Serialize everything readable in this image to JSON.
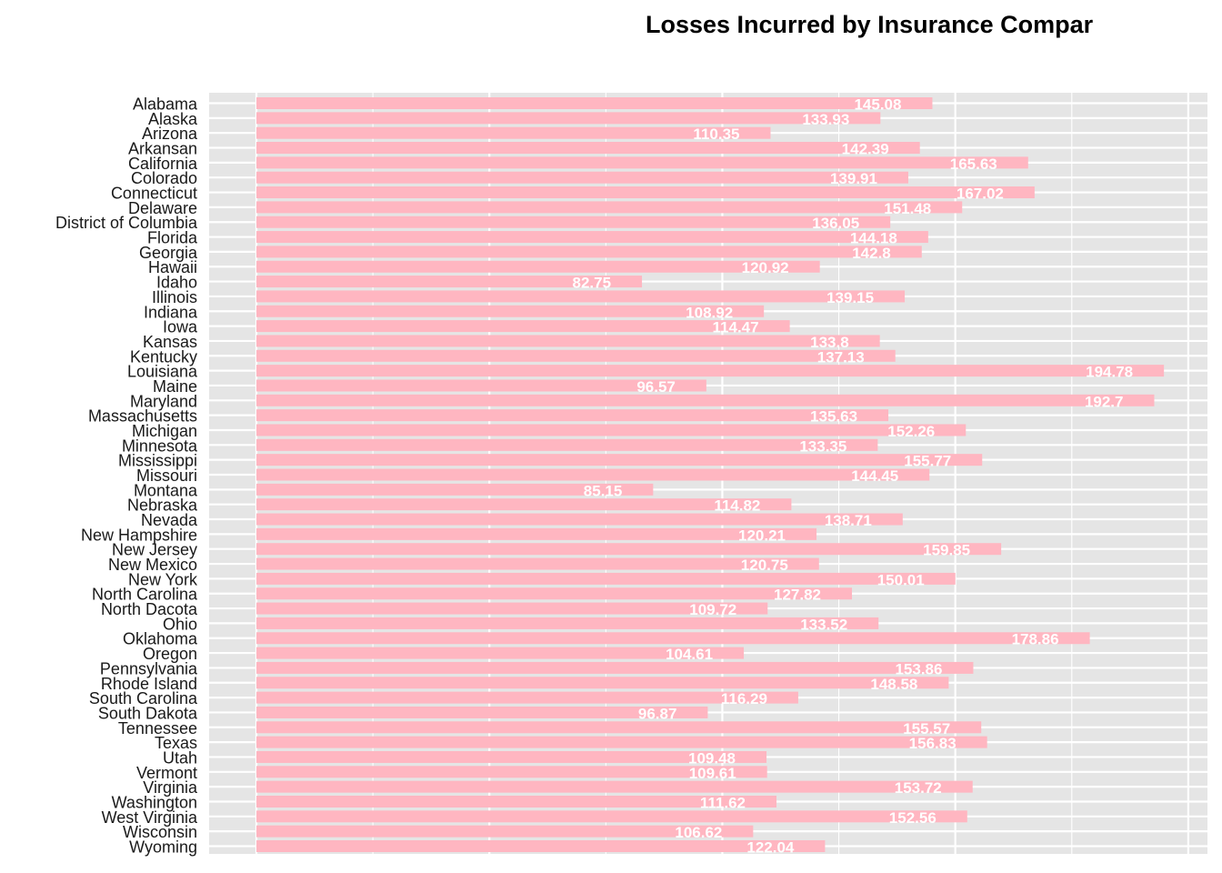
{
  "chart_data": {
    "type": "bar",
    "orientation": "horizontal",
    "title": "Losses Incurred by Insurance Compar",
    "xlabel": "",
    "ylabel": "",
    "xlim": [
      -10,
      200
    ],
    "grid": true,
    "legend": "none",
    "colors": {
      "bar": "#ffb6c1",
      "panel": "#e5e5e5",
      "grid": "#ffffff",
      "label": "#ffffff"
    },
    "categories": [
      "Alabama",
      "Alaska",
      "Arizona",
      "Arkansan",
      "California",
      "Colorado",
      "Connecticut",
      "Delaware",
      "District of Columbia",
      "Florida",
      "Georgia",
      "Hawaii",
      "Idaho",
      "Illinois",
      "Indiana",
      "Iowa",
      "Kansas",
      "Kentucky",
      "Louisiana",
      "Maine",
      "Maryland",
      "Massachusetts",
      "Michigan",
      "Minnesota",
      "Mississippi",
      "Missouri",
      "Montana",
      "Nebraska",
      "Nevada",
      "New Hampshire",
      "New Jersey",
      "New Mexico",
      "New York",
      "North Carolina",
      "North Dacota",
      "Ohio",
      "Oklahoma",
      "Oregon",
      "Pennsylvania",
      "Rhode Island",
      "South Carolina",
      "South Dakota",
      "Tennessee",
      "Texas",
      "Utah",
      "Vermont",
      "Virginia",
      "Washington",
      "West Virginia",
      "Wisconsin",
      "Wyoming"
    ],
    "values": [
      145.08,
      133.93,
      110.35,
      142.39,
      165.63,
      139.91,
      167.02,
      151.48,
      136.05,
      144.18,
      142.8,
      120.92,
      82.75,
      139.15,
      108.92,
      114.47,
      133.8,
      137.13,
      194.78,
      96.57,
      192.7,
      135.63,
      152.26,
      133.35,
      155.77,
      144.45,
      85.15,
      114.82,
      138.71,
      120.21,
      159.85,
      120.75,
      150.01,
      127.82,
      109.72,
      133.52,
      178.86,
      104.61,
      153.86,
      148.58,
      116.29,
      96.87,
      155.57,
      156.83,
      109.48,
      109.61,
      153.72,
      111.62,
      152.56,
      106.62,
      122.04
    ]
  }
}
